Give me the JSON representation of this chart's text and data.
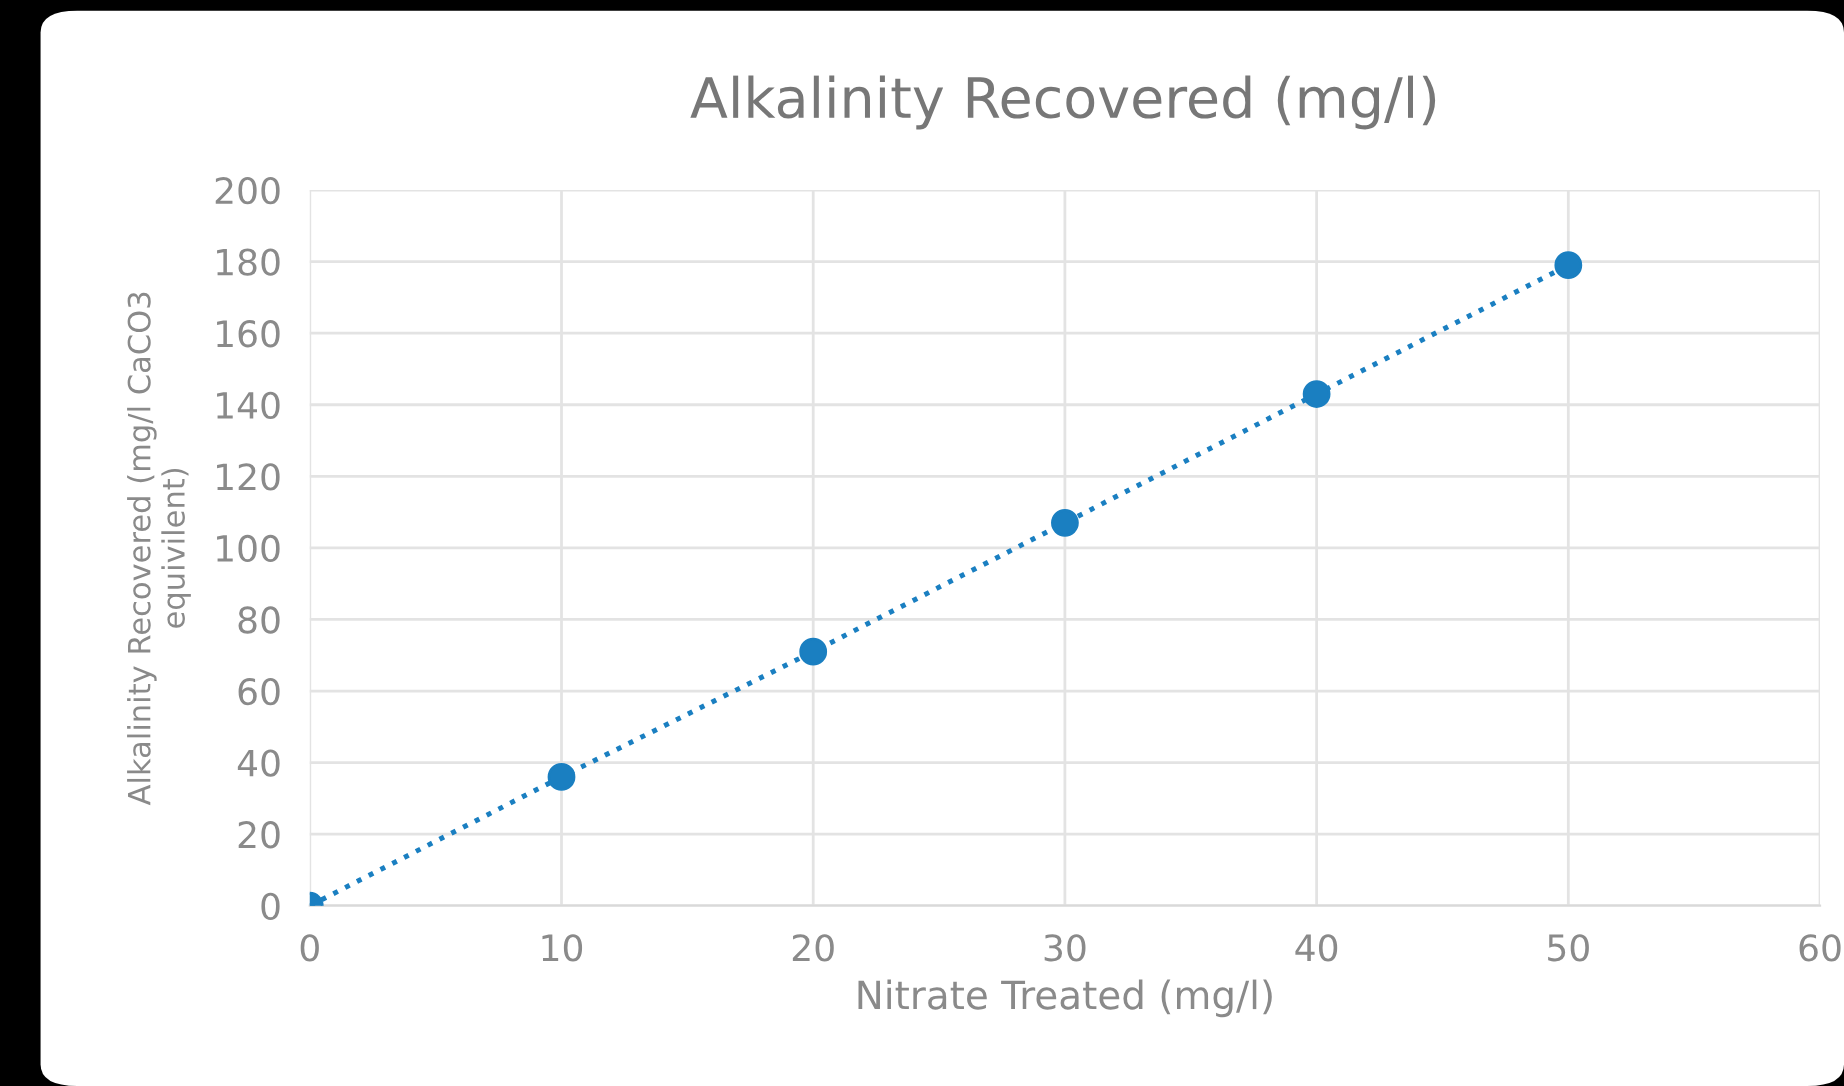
{
  "chart_data": {
    "type": "line",
    "title": "Alkalinity Recovered (mg/l)",
    "xlabel": "Nitrate Treated (mg/l)",
    "ylabel": "Alkalinity Recovered (mg/l CaCO3\nequivilent)",
    "x": [
      0,
      10,
      20,
      30,
      40,
      50
    ],
    "series": [
      {
        "color": "#1a7fc1",
        "values": [
          0,
          36,
          71,
          107,
          143,
          179
        ]
      }
    ],
    "xlim": [
      0,
      60
    ],
    "xticks": [
      0,
      10,
      20,
      30,
      40,
      50,
      60
    ],
    "ylim": [
      0,
      200
    ],
    "yticks": [
      0,
      20,
      40,
      60,
      80,
      100,
      120,
      140,
      160,
      180,
      200
    ],
    "grid": true,
    "marker": "circle",
    "line_style": "dotted"
  }
}
